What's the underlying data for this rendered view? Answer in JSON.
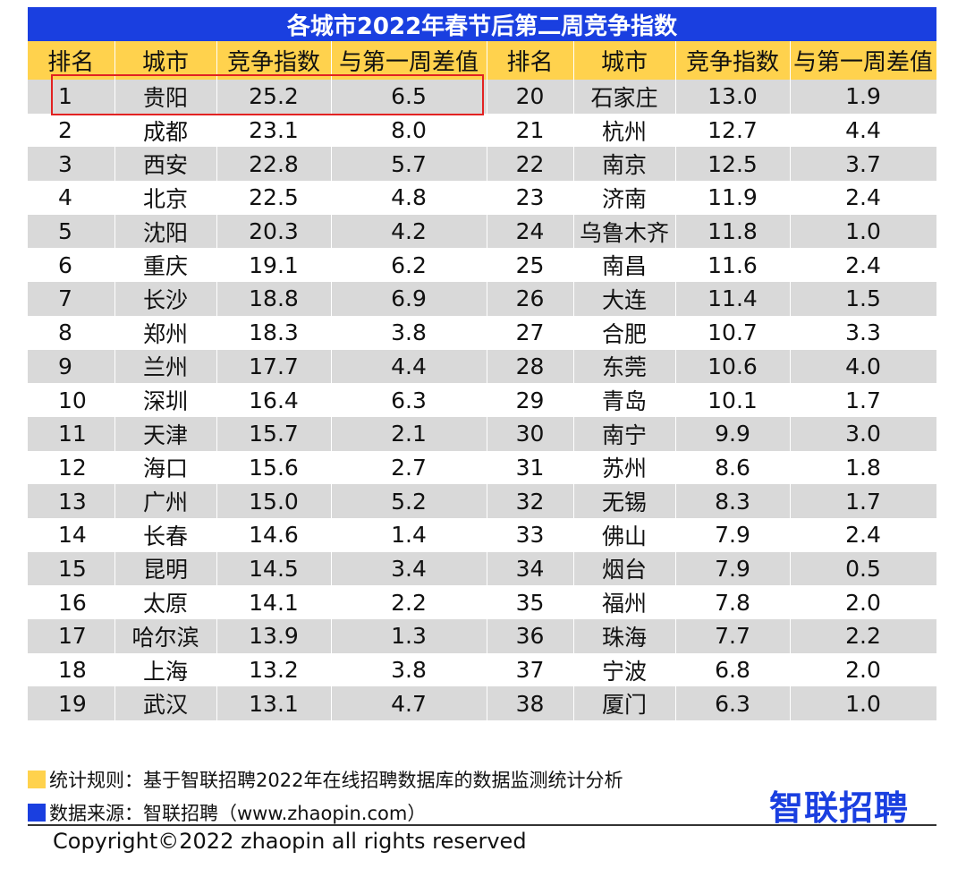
{
  "colors": {
    "title_bg": "#1a3fe0",
    "header_bg": "#ffd24d",
    "row_gray": "#d9d9d9",
    "highlight": "#e22222",
    "logo": "#1a3fe0"
  },
  "title": "各城市2022年春节后第二周竞争指数",
  "columns": [
    "排名",
    "城市",
    "竞争指数",
    "与第一周差值",
    "排名",
    "城市",
    "竞争指数",
    "与第一周差值"
  ],
  "chart_data": {
    "type": "table",
    "title": "各城市2022年春节后第二周竞争指数",
    "columns": [
      "排名",
      "城市",
      "竞争指数",
      "与第一周差值"
    ],
    "rows": [
      [
        "1",
        "贵阳",
        "25.2",
        "6.5"
      ],
      [
        "2",
        "成都",
        "23.1",
        "8.0"
      ],
      [
        "3",
        "西安",
        "22.8",
        "5.7"
      ],
      [
        "4",
        "北京",
        "22.5",
        "4.8"
      ],
      [
        "5",
        "沈阳",
        "20.3",
        "4.2"
      ],
      [
        "6",
        "重庆",
        "19.1",
        "6.2"
      ],
      [
        "7",
        "长沙",
        "18.8",
        "6.9"
      ],
      [
        "8",
        "郑州",
        "18.3",
        "3.8"
      ],
      [
        "9",
        "兰州",
        "17.7",
        "4.4"
      ],
      [
        "10",
        "深圳",
        "16.4",
        "6.3"
      ],
      [
        "11",
        "天津",
        "15.7",
        "2.1"
      ],
      [
        "12",
        "海口",
        "15.6",
        "2.7"
      ],
      [
        "13",
        "广州",
        "15.0",
        "5.2"
      ],
      [
        "14",
        "长春",
        "14.6",
        "1.4"
      ],
      [
        "15",
        "昆明",
        "14.5",
        "3.4"
      ],
      [
        "16",
        "太原",
        "14.1",
        "2.2"
      ],
      [
        "17",
        "哈尔滨",
        "13.9",
        "1.3"
      ],
      [
        "18",
        "上海",
        "13.2",
        "3.8"
      ],
      [
        "19",
        "武汉",
        "13.1",
        "4.7"
      ],
      [
        "20",
        "石家庄",
        "13.0",
        "1.9"
      ],
      [
        "21",
        "杭州",
        "12.7",
        "4.4"
      ],
      [
        "22",
        "南京",
        "12.5",
        "3.7"
      ],
      [
        "23",
        "济南",
        "11.9",
        "2.4"
      ],
      [
        "24",
        "乌鲁木齐",
        "11.8",
        "1.0"
      ],
      [
        "25",
        "南昌",
        "11.6",
        "2.4"
      ],
      [
        "26",
        "大连",
        "11.4",
        "1.5"
      ],
      [
        "27",
        "合肥",
        "10.7",
        "3.3"
      ],
      [
        "28",
        "东莞",
        "10.6",
        "4.0"
      ],
      [
        "29",
        "青岛",
        "10.1",
        "1.7"
      ],
      [
        "30",
        "南宁",
        "9.9",
        "3.0"
      ],
      [
        "31",
        "苏州",
        "8.6",
        "1.8"
      ],
      [
        "32",
        "无锡",
        "8.3",
        "1.7"
      ],
      [
        "33",
        "佛山",
        "7.9",
        "2.4"
      ],
      [
        "34",
        "烟台",
        "7.9",
        "0.5"
      ],
      [
        "35",
        "福州",
        "7.8",
        "2.0"
      ],
      [
        "36",
        "珠海",
        "7.7",
        "2.2"
      ],
      [
        "37",
        "宁波",
        "6.8",
        "2.0"
      ],
      [
        "38",
        "厦门",
        "6.3",
        "1.0"
      ]
    ]
  },
  "footnotes": {
    "rule": "统计规则：基于智联招聘2022年在线招聘数据库的数据监测统计分析",
    "source": "数据来源：智联招聘（www.zhaopin.com）"
  },
  "logo": "智联招聘",
  "copyright": "Copyright©2022 zhaopin all rights reserved"
}
